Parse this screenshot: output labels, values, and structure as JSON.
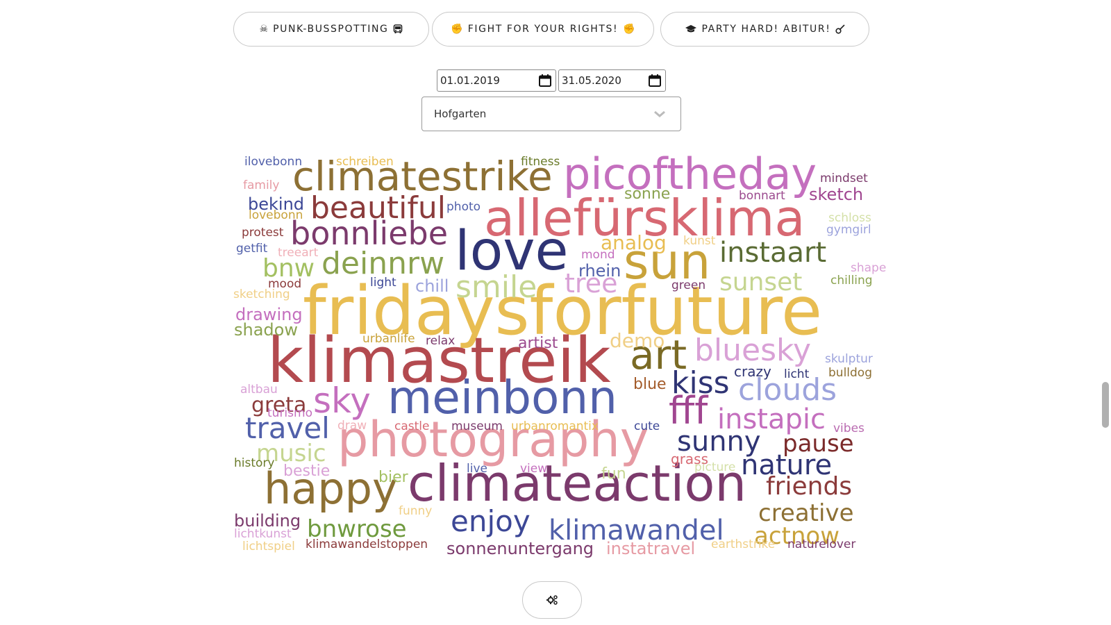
{
  "tabs": [
    {
      "label": "PUNK-BUSSPOTTING",
      "icon_left": "skull-crossbones-icon",
      "icon_right": "bus-icon"
    },
    {
      "label": "FIGHT FOR YOUR RIGHTS!",
      "icon_left": "raised-fist-icon",
      "icon_right": "raised-fist-icon"
    },
    {
      "label": "PARTY HARD! ABITUR!",
      "icon_left": "graduation-cap-icon",
      "icon_right": "guitar-icon"
    }
  ],
  "filters": {
    "date_from": "01.01.2019",
    "date_to": "31.05.2020",
    "location": "Hofgarten"
  },
  "settings_icon": "cogs-icon",
  "colors": {
    "gold": "#e8bd52",
    "red": "#b34a4f",
    "brown": "#8d7034",
    "plum": "#7b3a6c",
    "indigo": "#2f3474",
    "blue": "#5160aa",
    "rose": "#d76872",
    "pink": "#e69aa3",
    "orchid": "#c46fbe",
    "olive": "#8aa24f",
    "lime": "#c5d590"
  },
  "words": [
    {
      "t": "fridaysforfuture",
      "c": "#e8bd52"
    },
    {
      "t": "klimastreik",
      "c": "#b34a4f"
    },
    {
      "t": "allefürsklima",
      "c": "#d76872"
    },
    {
      "t": "photography",
      "c": "#e69aa3"
    },
    {
      "t": "meinbonn",
      "c": "#5160aa"
    },
    {
      "t": "climateaction",
      "c": "#7b3a6c"
    },
    {
      "t": "love",
      "c": "#2f3474"
    },
    {
      "t": "picoftheday",
      "c": "#c46fbe"
    },
    {
      "t": "climatestrike",
      "c": "#8d7034"
    },
    {
      "t": "happy",
      "c": "#8d7034"
    },
    {
      "t": "sun",
      "c": "#c8a23a"
    },
    {
      "t": "art",
      "c": "#7a6a25"
    },
    {
      "t": "bonnliebe",
      "c": "#7b3a6c"
    },
    {
      "t": "beautiful",
      "c": "#8b3b3b"
    },
    {
      "t": "sky",
      "c": "#c46fbe"
    },
    {
      "t": "bluesky",
      "c": "#d9a1d6"
    },
    {
      "t": "fff",
      "c": "#a04690"
    },
    {
      "t": "kiss",
      "c": "#2f3474"
    },
    {
      "t": "travel",
      "c": "#5160aa"
    },
    {
      "t": "deinnrw",
      "c": "#8aa24f"
    },
    {
      "t": "instaart",
      "c": "#5a6b34"
    },
    {
      "t": "clouds",
      "c": "#9ca3dc"
    },
    {
      "t": "instapic",
      "c": "#c46fbe"
    },
    {
      "t": "enjoy",
      "c": "#3c4796"
    },
    {
      "t": "klimawandel",
      "c": "#5160aa"
    },
    {
      "t": "sunny",
      "c": "#2f3474"
    },
    {
      "t": "nature",
      "c": "#2f3474"
    },
    {
      "t": "smile",
      "c": "#c5d590"
    },
    {
      "t": "bnwrose",
      "c": "#6f9a3e"
    },
    {
      "t": "friends",
      "c": "#8b3b3b"
    },
    {
      "t": "creative",
      "c": "#8d7034"
    },
    {
      "t": "actnow",
      "c": "#c8a23a"
    },
    {
      "t": "sunset",
      "c": "#c5d590"
    },
    {
      "t": "music",
      "c": "#c5d590"
    },
    {
      "t": "pause",
      "c": "#7b2a2a"
    },
    {
      "t": "tree",
      "c": "#d9a1d6"
    },
    {
      "t": "bnw",
      "c": "#a3c061"
    },
    {
      "t": "greta",
      "c": "#8b3b3b"
    },
    {
      "t": "analog",
      "c": "#e8bd52"
    },
    {
      "t": "demo",
      "c": "#f0cf86"
    },
    {
      "t": "sonne",
      "c": "#8aa24f"
    },
    {
      "t": "sketch",
      "c": "#a04690"
    },
    {
      "t": "drawing",
      "c": "#c46fbe"
    },
    {
      "t": "shadow",
      "c": "#8aa24f"
    },
    {
      "t": "artist",
      "c": "#9b4a8e"
    },
    {
      "t": "rhein",
      "c": "#5160aa"
    },
    {
      "t": "chill",
      "c": "#9ca3dc"
    },
    {
      "t": "blue",
      "c": "#a35b2a"
    },
    {
      "t": "crazy",
      "c": "#2f3474"
    },
    {
      "t": "bekind",
      "c": "#3c4796"
    },
    {
      "t": "building",
      "c": "#7b3a6c"
    },
    {
      "t": "sonnenuntergang",
      "c": "#7b3a6c"
    },
    {
      "t": "instatravel",
      "c": "#e69aa3"
    },
    {
      "t": "bier",
      "c": "#a3c061"
    },
    {
      "t": "fun",
      "c": "#c5d590"
    },
    {
      "t": "grass",
      "c": "#d76872"
    },
    {
      "t": "bestie",
      "c": "#d9a1d6"
    },
    {
      "t": "ilovebonn",
      "c": "#5160aa"
    },
    {
      "t": "schreiben",
      "c": "#e8bd52"
    },
    {
      "t": "fitness",
      "c": "#6a7b2a"
    },
    {
      "t": "mindset",
      "c": "#7b3a6c"
    },
    {
      "t": "family",
      "c": "#e69aa3"
    },
    {
      "t": "bonnart",
      "c": "#9b4a8e"
    },
    {
      "t": "photo",
      "c": "#5160aa"
    },
    {
      "t": "lovebonn",
      "c": "#c8a23a"
    },
    {
      "t": "schloss",
      "c": "#d4e0a8"
    },
    {
      "t": "gymgirl",
      "c": "#9ca3dc"
    },
    {
      "t": "protest",
      "c": "#8b3b3b"
    },
    {
      "t": "kunst",
      "c": "#f0cf86"
    },
    {
      "t": "getfit",
      "c": "#5160aa"
    },
    {
      "t": "treeart",
      "c": "#f0b0b8"
    },
    {
      "t": "mond",
      "c": "#c46fbe"
    },
    {
      "t": "shape",
      "c": "#d9a1d6"
    },
    {
      "t": "chilling",
      "c": "#8aa24f"
    },
    {
      "t": "mood",
      "c": "#8b3b3b"
    },
    {
      "t": "light",
      "c": "#3c4796"
    },
    {
      "t": "green",
      "c": "#7b3a6c"
    },
    {
      "t": "sketching",
      "c": "#f0cf86"
    },
    {
      "t": "urbanlife",
      "c": "#c8a23a"
    },
    {
      "t": "relax",
      "c": "#7b3a6c"
    },
    {
      "t": "skulptur",
      "c": "#9ca3dc"
    },
    {
      "t": "licht",
      "c": "#2f3474"
    },
    {
      "t": "bulldog",
      "c": "#8d7034"
    },
    {
      "t": "altbau",
      "c": "#d9a1d6"
    },
    {
      "t": "turismo",
      "c": "#c46fbe"
    },
    {
      "t": "draw",
      "c": "#f0b0b8"
    },
    {
      "t": "castle",
      "c": "#d76872"
    },
    {
      "t": "museum",
      "c": "#7b3a6c"
    },
    {
      "t": "urbanromantix",
      "c": "#e8bd52"
    },
    {
      "t": "cute",
      "c": "#3c4796"
    },
    {
      "t": "vibes",
      "c": "#b96ab0"
    },
    {
      "t": "history",
      "c": "#6a7b2a"
    },
    {
      "t": "live",
      "c": "#5160aa"
    },
    {
      "t": "view",
      "c": "#c46fbe"
    },
    {
      "t": "picture",
      "c": "#d4e0a8"
    },
    {
      "t": "funny",
      "c": "#f0cf86"
    },
    {
      "t": "lichtkunst",
      "c": "#d9a1d6"
    },
    {
      "t": "lichtspiel",
      "c": "#f0cf86"
    },
    {
      "t": "klimawandelstoppen",
      "c": "#8b3b3b"
    },
    {
      "t": "earthstrike",
      "c": "#f0cf86"
    },
    {
      "t": "naturelover",
      "c": "#7b3a6c"
    }
  ]
}
